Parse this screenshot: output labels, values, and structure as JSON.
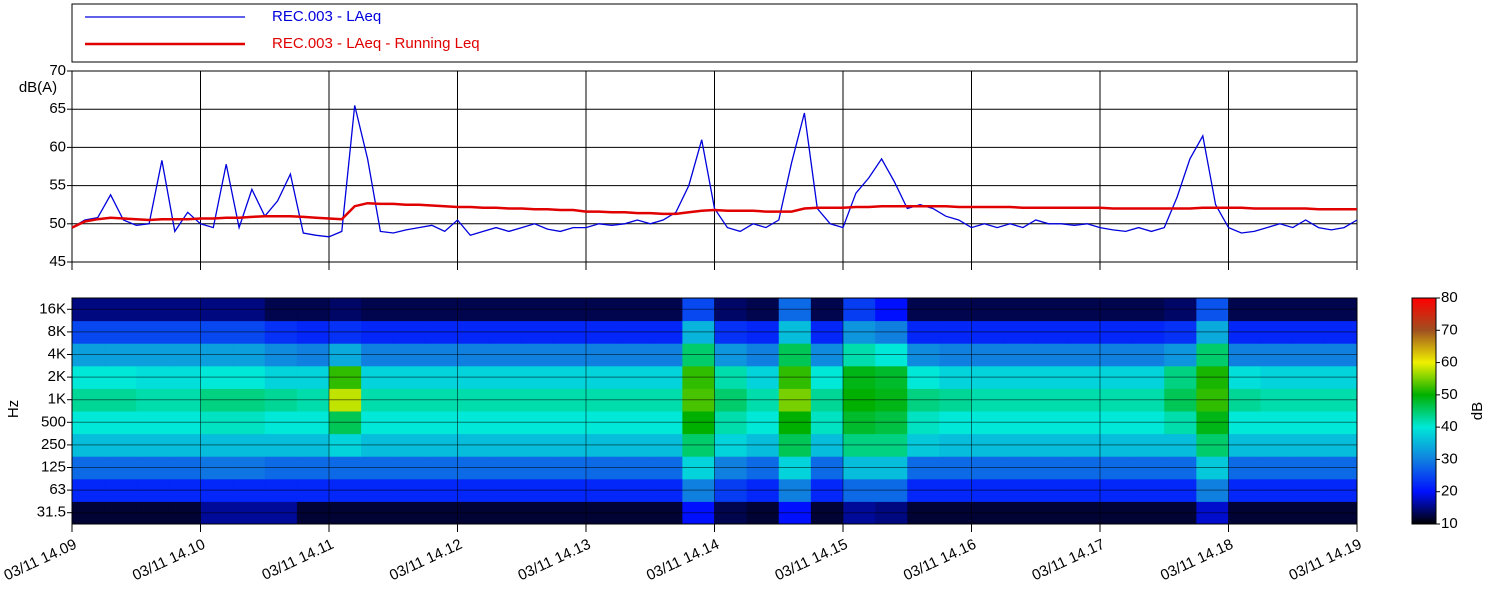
{
  "chart_data": [
    {
      "type": "line",
      "ylabel": "dB(A)",
      "ylim": [
        45,
        70
      ],
      "yticks": [
        45,
        50,
        55,
        60,
        65,
        70
      ],
      "xlim": [
        9,
        19
      ],
      "xticks": [
        9,
        10,
        11,
        12,
        13,
        14,
        15,
        16,
        17,
        18,
        19
      ],
      "grid": true,
      "x": [
        9.0,
        9.1,
        9.2,
        9.3,
        9.4,
        9.5,
        9.6,
        9.7,
        9.8,
        9.9,
        10.0,
        10.1,
        10.2,
        10.3,
        10.4,
        10.5,
        10.6,
        10.7,
        10.8,
        10.9,
        11.0,
        11.1,
        11.2,
        11.3,
        11.4,
        11.5,
        11.6,
        11.7,
        11.8,
        11.9,
        12.0,
        12.1,
        12.2,
        12.3,
        12.4,
        12.5,
        12.6,
        12.7,
        12.8,
        12.9,
        13.0,
        13.1,
        13.2,
        13.3,
        13.4,
        13.5,
        13.6,
        13.7,
        13.8,
        13.9,
        14.0,
        14.1,
        14.2,
        14.3,
        14.4,
        14.5,
        14.6,
        14.7,
        14.8,
        14.9,
        15.0,
        15.1,
        15.2,
        15.3,
        15.4,
        15.5,
        15.6,
        15.7,
        15.8,
        15.9,
        16.0,
        16.1,
        16.2,
        16.3,
        16.4,
        16.5,
        16.6,
        16.7,
        16.8,
        16.9,
        17.0,
        17.1,
        17.2,
        17.3,
        17.4,
        17.5,
        17.6,
        17.7,
        17.8,
        17.9,
        18.0,
        18.1,
        18.2,
        18.3,
        18.4,
        18.5,
        18.6,
        18.7,
        18.8,
        18.9,
        19.0
      ],
      "series": [
        {
          "name": "REC.003 - LAeq",
          "color": "#0000dd",
          "values": [
            49.5,
            50.5,
            50.8,
            53.8,
            50.5,
            49.8,
            50.0,
            58.3,
            49.0,
            51.5,
            50.0,
            49.5,
            57.8,
            49.5,
            54.5,
            51.0,
            53.0,
            56.5,
            48.8,
            48.5,
            48.3,
            49.0,
            65.5,
            58.5,
            49.0,
            48.8,
            49.2,
            49.5,
            49.8,
            49.0,
            50.5,
            48.5,
            49.0,
            49.5,
            49.0,
            49.5,
            50.0,
            49.3,
            49.0,
            49.5,
            49.5,
            50.0,
            49.8,
            50.0,
            50.5,
            50.0,
            50.5,
            51.5,
            55.0,
            61.0,
            52.0,
            49.5,
            49.0,
            50.0,
            49.5,
            50.5,
            58.0,
            64.5,
            52.0,
            50.0,
            49.5,
            54.0,
            56.0,
            58.5,
            55.5,
            52.0,
            52.5,
            52.0,
            51.0,
            50.5,
            49.5,
            50.0,
            49.5,
            50.0,
            49.5,
            50.5,
            50.0,
            50.0,
            49.8,
            50.0,
            49.5,
            49.2,
            49.0,
            49.5,
            49.0,
            49.5,
            53.5,
            58.5,
            61.5,
            52.5,
            49.5,
            48.8,
            49.0,
            49.5,
            50.0,
            49.5,
            50.5,
            49.5,
            49.2,
            49.5,
            50.5
          ]
        },
        {
          "name": "REC.003 - LAeq - Running Leq",
          "color": "#e00000",
          "values": [
            49.5,
            50.3,
            50.6,
            50.8,
            50.7,
            50.6,
            50.5,
            50.6,
            50.6,
            50.6,
            50.7,
            50.7,
            50.8,
            50.8,
            50.9,
            51.0,
            51.0,
            51.0,
            50.9,
            50.8,
            50.7,
            50.6,
            52.3,
            52.7,
            52.6,
            52.6,
            52.5,
            52.5,
            52.4,
            52.3,
            52.2,
            52.2,
            52.1,
            52.1,
            52.0,
            52.0,
            51.9,
            51.9,
            51.8,
            51.8,
            51.6,
            51.6,
            51.5,
            51.5,
            51.4,
            51.4,
            51.3,
            51.3,
            51.5,
            51.7,
            51.8,
            51.7,
            51.7,
            51.7,
            51.6,
            51.6,
            51.6,
            52.0,
            52.1,
            52.1,
            52.1,
            52.2,
            52.2,
            52.3,
            52.3,
            52.3,
            52.3,
            52.3,
            52.3,
            52.2,
            52.2,
            52.2,
            52.2,
            52.2,
            52.1,
            52.1,
            52.1,
            52.1,
            52.1,
            52.1,
            52.1,
            52.0,
            52.0,
            52.0,
            52.0,
            52.0,
            52.0,
            52.0,
            52.1,
            52.1,
            52.1,
            52.1,
            52.0,
            52.0,
            52.0,
            52.0,
            52.0,
            51.9,
            51.9,
            51.9,
            51.9
          ]
        }
      ]
    },
    {
      "type": "heatmap",
      "ylabel": "Hz",
      "xlim": [
        9,
        19
      ],
      "xticks": [
        {
          "value": 9,
          "label": "03/11 14.09"
        },
        {
          "value": 10,
          "label": "03/11 14.10"
        },
        {
          "value": 11,
          "label": "03/11 14.11"
        },
        {
          "value": 12,
          "label": "03/11 14.12"
        },
        {
          "value": 13,
          "label": "03/11 14.13"
        },
        {
          "value": 14,
          "label": "03/11 14.14"
        },
        {
          "value": 15,
          "label": "03/11 14.15"
        },
        {
          "value": 16,
          "label": "03/11 14.16"
        },
        {
          "value": 17,
          "label": "03/11 14.17"
        },
        {
          "value": 18,
          "label": "03/11 14.18"
        },
        {
          "value": 19,
          "label": "03/11 14.19"
        }
      ],
      "bins": [
        9.0,
        9.25,
        9.5,
        9.75,
        10.0,
        10.25,
        10.5,
        10.75,
        11.0,
        11.25,
        11.5,
        11.75,
        12.0,
        12.25,
        12.5,
        12.75,
        13.0,
        13.25,
        13.5,
        13.75,
        14.0,
        14.25,
        14.5,
        14.75,
        15.0,
        15.25,
        15.5,
        15.75,
        16.0,
        16.25,
        16.5,
        16.75,
        17.0,
        17.25,
        17.5,
        17.75,
        18.0,
        18.25,
        18.5,
        18.75,
        19.0
      ],
      "categories": [
        "31.5",
        "63",
        "125",
        "250",
        "500",
        "1K",
        "2K",
        "4K",
        "8K",
        "16K"
      ],
      "z": [
        [
          12,
          12,
          12,
          12,
          16,
          16,
          16,
          12,
          12,
          12,
          12,
          12,
          12,
          12,
          12,
          12,
          12,
          12,
          12,
          20,
          13,
          12,
          20,
          12,
          16,
          15,
          12,
          12,
          12,
          12,
          12,
          12,
          12,
          12,
          12,
          18,
          12,
          12,
          12,
          12
        ],
        [
          22,
          22,
          22,
          22,
          22,
          22,
          22,
          22,
          22,
          22,
          22,
          22,
          22,
          22,
          22,
          22,
          22,
          22,
          22,
          30,
          24,
          22,
          30,
          22,
          28,
          28,
          22,
          22,
          22,
          22,
          22,
          22,
          22,
          22,
          22,
          30,
          22,
          22,
          22,
          22
        ],
        [
          28,
          28,
          28,
          28,
          29,
          29,
          28,
          28,
          28,
          28,
          28,
          28,
          28,
          28,
          28,
          28,
          28,
          28,
          28,
          38,
          30,
          28,
          38,
          28,
          36,
          36,
          28,
          28,
          28,
          28,
          28,
          28,
          28,
          28,
          28,
          37,
          28,
          28,
          28,
          28
        ],
        [
          36,
          36,
          36,
          36,
          36,
          36,
          36,
          36,
          38,
          36,
          36,
          36,
          36,
          36,
          36,
          36,
          36,
          36,
          36,
          45,
          38,
          36,
          46,
          36,
          44,
          44,
          37,
          36,
          36,
          36,
          36,
          36,
          36,
          36,
          36,
          45,
          36,
          36,
          36,
          36
        ],
        [
          40,
          40,
          40,
          40,
          41,
          41,
          40,
          40,
          46,
          40,
          40,
          40,
          40,
          40,
          40,
          40,
          40,
          40,
          40,
          50,
          42,
          40,
          50,
          41,
          48,
          47,
          41,
          40,
          40,
          40,
          40,
          40,
          40,
          40,
          42,
          49,
          40,
          40,
          40,
          40
        ],
        [
          43,
          43,
          42,
          42,
          44,
          44,
          43,
          42,
          58,
          42,
          42,
          42,
          42,
          42,
          42,
          42,
          42,
          42,
          42,
          53,
          45,
          42,
          55,
          43,
          50,
          49,
          44,
          43,
          42,
          42,
          42,
          42,
          42,
          42,
          46,
          52,
          43,
          42,
          42,
          42
        ],
        [
          40,
          40,
          39,
          39,
          40,
          40,
          38,
          38,
          52,
          38,
          38,
          38,
          38,
          38,
          38,
          38,
          38,
          38,
          38,
          52,
          42,
          38,
          52,
          40,
          49,
          48,
          40,
          38,
          38,
          38,
          38,
          38,
          38,
          38,
          44,
          51,
          39,
          38,
          38,
          38
        ],
        [
          33,
          33,
          33,
          33,
          33,
          33,
          31,
          30,
          34,
          30,
          30,
          30,
          30,
          30,
          30,
          30,
          30,
          30,
          30,
          45,
          32,
          30,
          46,
          31,
          42,
          40,
          31,
          30,
          30,
          30,
          30,
          30,
          30,
          30,
          32,
          45,
          30,
          30,
          30,
          30
        ],
        [
          25,
          25,
          25,
          25,
          25,
          25,
          23,
          22,
          23,
          22,
          22,
          22,
          22,
          22,
          22,
          22,
          22,
          22,
          22,
          35,
          23,
          22,
          36,
          22,
          32,
          30,
          22,
          22,
          22,
          22,
          22,
          22,
          22,
          22,
          23,
          34,
          22,
          22,
          22,
          22
        ],
        [
          15,
          15,
          15,
          15,
          15,
          15,
          13,
          13,
          14,
          13,
          13,
          13,
          13,
          13,
          13,
          13,
          13,
          13,
          13,
          25,
          14,
          13,
          28,
          13,
          24,
          20,
          13,
          13,
          13,
          13,
          13,
          13,
          13,
          13,
          14,
          26,
          13,
          13,
          13,
          13
        ]
      ],
      "colorbar_label": "dB",
      "clim": [
        10,
        80
      ],
      "cticks": [
        10,
        20,
        30,
        40,
        50,
        60,
        70,
        80
      ],
      "colorscale": [
        "#000000",
        "#0010ff",
        "#1080e0",
        "#00e8d8",
        "#00b000",
        "#f0f000",
        "#a05020",
        "#ff0000"
      ]
    }
  ]
}
